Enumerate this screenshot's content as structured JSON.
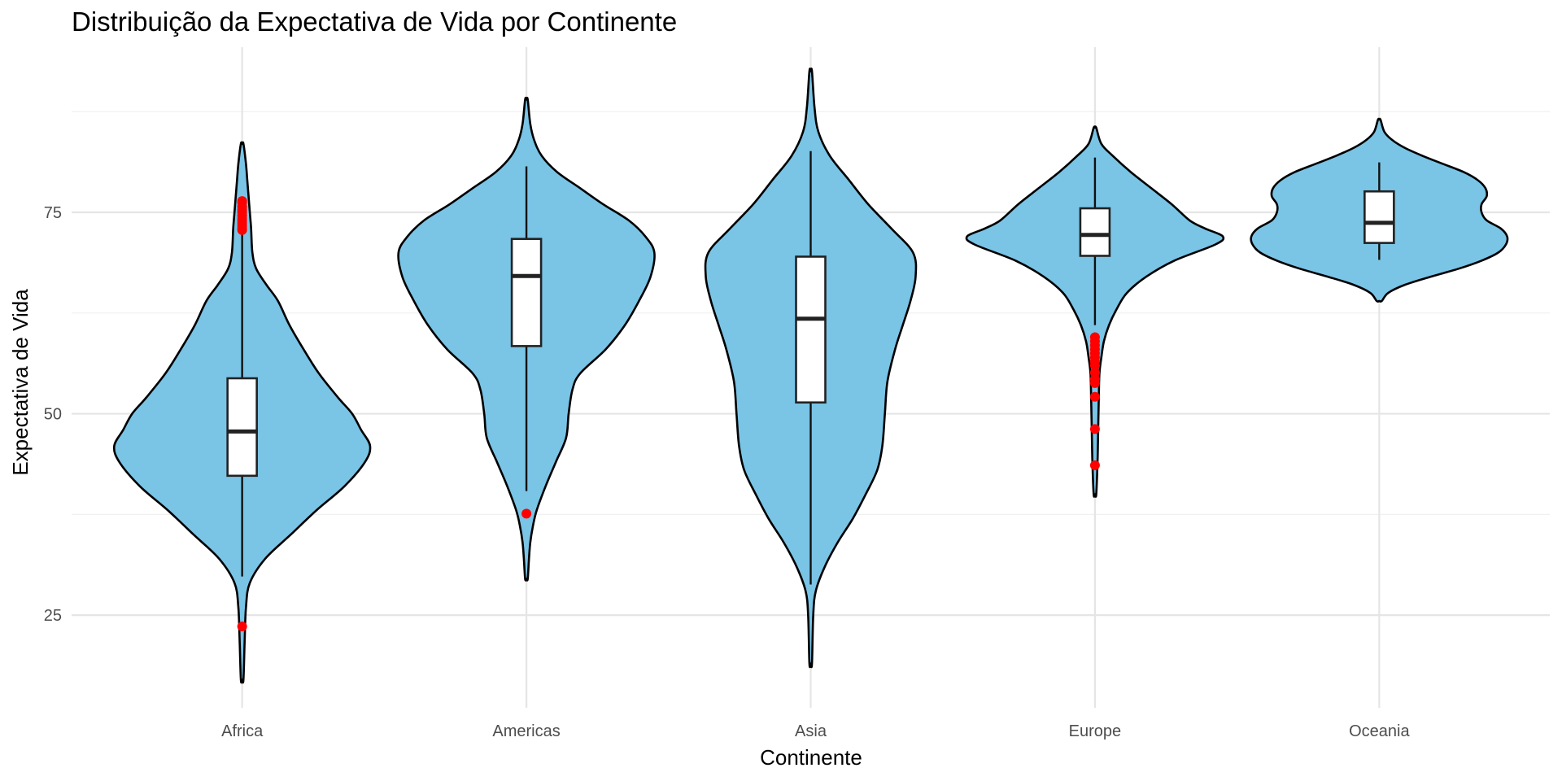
{
  "chart_data": {
    "type": "violin",
    "title": "Distribuição da Expectativa de Vida por Continente",
    "xlabel": "Continente",
    "ylabel": "Expectativa de Vida",
    "ylim": [
      13.5,
      95.5
    ],
    "yticks": [
      25,
      50,
      75
    ],
    "grid": true,
    "legend": "none",
    "colors": {
      "violin_fill": "#7AC4E6",
      "outlier": "#FF0000",
      "box_fill": "#FFFFFF",
      "gridline": "#E5E5E5"
    },
    "categories": [
      "Africa",
      "Americas",
      "Asia",
      "Europe",
      "Oceania"
    ],
    "violins": [
      {
        "category": "Africa",
        "range": [
          17,
          83.5
        ],
        "density": [
          [
            17,
            0.01
          ],
          [
            22,
            0.02
          ],
          [
            26,
            0.03
          ],
          [
            29,
            0.06
          ],
          [
            32,
            0.18
          ],
          [
            35,
            0.38
          ],
          [
            38,
            0.58
          ],
          [
            41,
            0.8
          ],
          [
            44,
            0.96
          ],
          [
            46,
            1
          ],
          [
            48,
            0.93
          ],
          [
            50,
            0.86
          ],
          [
            52,
            0.75
          ],
          [
            55,
            0.6
          ],
          [
            58,
            0.48
          ],
          [
            61,
            0.37
          ],
          [
            64,
            0.28
          ],
          [
            66,
            0.19
          ],
          [
            68,
            0.11
          ],
          [
            70,
            0.08
          ],
          [
            73,
            0.07
          ],
          [
            75,
            0.06
          ],
          [
            77,
            0.05
          ],
          [
            79,
            0.04
          ],
          [
            81,
            0.03
          ],
          [
            83.5,
            0.01
          ]
        ],
        "box": {
          "q1": 42.3,
          "median": 47.8,
          "q3": 54.4,
          "whisker_low": 29.8,
          "whisker_high": 72.9
        },
        "outliers": [
          23.6,
          72.8,
          73.0,
          73.3,
          73.6,
          73.9,
          74.2,
          74.6,
          75.0,
          75.3,
          75.7,
          76.2,
          76.4
        ]
      },
      {
        "category": "Americas",
        "range": [
          29.5,
          89
        ],
        "density": [
          [
            29.5,
            0.01
          ],
          [
            32,
            0.02
          ],
          [
            34,
            0.03
          ],
          [
            36,
            0.05
          ],
          [
            38,
            0.08
          ],
          [
            41,
            0.15
          ],
          [
            44,
            0.23
          ],
          [
            47,
            0.31
          ],
          [
            50,
            0.33
          ],
          [
            53,
            0.36
          ],
          [
            55,
            0.42
          ],
          [
            58,
            0.62
          ],
          [
            61,
            0.77
          ],
          [
            64,
            0.88
          ],
          [
            67,
            0.97
          ],
          [
            70,
            1
          ],
          [
            72,
            0.93
          ],
          [
            74,
            0.8
          ],
          [
            76,
            0.6
          ],
          [
            78,
            0.42
          ],
          [
            80,
            0.24
          ],
          [
            82,
            0.12
          ],
          [
            84,
            0.06
          ],
          [
            86,
            0.03
          ],
          [
            89,
            0.01
          ]
        ],
        "box": {
          "q1": 58.4,
          "median": 67.1,
          "q3": 71.7,
          "whisker_low": 40.4,
          "whisker_high": 80.7
        },
        "outliers": [
          37.6
        ]
      },
      {
        "category": "Asia",
        "range": [
          19,
          92.5
        ],
        "density": [
          [
            19,
            0.01
          ],
          [
            25,
            0.02
          ],
          [
            28,
            0.04
          ],
          [
            31,
            0.11
          ],
          [
            34,
            0.21
          ],
          [
            37,
            0.33
          ],
          [
            40,
            0.43
          ],
          [
            43,
            0.52
          ],
          [
            46,
            0.56
          ],
          [
            50,
            0.58
          ],
          [
            54,
            0.6
          ],
          [
            58,
            0.66
          ],
          [
            61,
            0.72
          ],
          [
            64,
            0.78
          ],
          [
            67,
            0.82
          ],
          [
            70,
            0.8
          ],
          [
            73,
            0.63
          ],
          [
            76,
            0.45
          ],
          [
            79,
            0.3
          ],
          [
            82,
            0.15
          ],
          [
            85,
            0.06
          ],
          [
            88,
            0.03
          ],
          [
            92.5,
            0.01
          ]
        ],
        "box": {
          "q1": 51.4,
          "median": 61.8,
          "q3": 69.5,
          "whisker_low": 28.8,
          "whisker_high": 82.6
        },
        "outliers": []
      },
      {
        "category": "Europe",
        "range": [
          40,
          85.5
        ],
        "density": [
          [
            40,
            0.01
          ],
          [
            44,
            0.02
          ],
          [
            48,
            0.025
          ],
          [
            52,
            0.03
          ],
          [
            55,
            0.035
          ],
          [
            57,
            0.05
          ],
          [
            59,
            0.07
          ],
          [
            61,
            0.11
          ],
          [
            63,
            0.17
          ],
          [
            65,
            0.25
          ],
          [
            67,
            0.4
          ],
          [
            69,
            0.62
          ],
          [
            71,
            0.94
          ],
          [
            72,
            1
          ],
          [
            73,
            0.86
          ],
          [
            74,
            0.74
          ],
          [
            76,
            0.6
          ],
          [
            78,
            0.44
          ],
          [
            80,
            0.28
          ],
          [
            82,
            0.14
          ],
          [
            83.5,
            0.05
          ],
          [
            85.5,
            0.01
          ]
        ],
        "box": {
          "q1": 69.6,
          "median": 72.2,
          "q3": 75.5,
          "whisker_low": 61.0,
          "whisker_high": 81.8
        },
        "outliers": [
          43.6,
          48.1,
          52.1,
          53.8,
          54.3,
          55.1,
          56.0,
          56.5,
          57.0,
          57.5,
          58.0,
          58.5,
          59.0,
          59.5
        ]
      },
      {
        "category": "Oceania",
        "range": [
          64,
          86.5
        ],
        "density": [
          [
            64,
            0.02
          ],
          [
            65,
            0.07
          ],
          [
            66,
            0.2
          ],
          [
            67,
            0.4
          ],
          [
            68,
            0.62
          ],
          [
            69,
            0.8
          ],
          [
            70,
            0.93
          ],
          [
            71,
            0.99
          ],
          [
            72,
            1
          ],
          [
            73,
            0.95
          ],
          [
            74,
            0.84
          ],
          [
            75,
            0.8
          ],
          [
            76,
            0.8
          ],
          [
            77,
            0.84
          ],
          [
            78,
            0.83
          ],
          [
            79,
            0.77
          ],
          [
            80,
            0.66
          ],
          [
            81,
            0.5
          ],
          [
            82,
            0.34
          ],
          [
            83,
            0.2
          ],
          [
            84,
            0.1
          ],
          [
            85,
            0.04
          ],
          [
            86.5,
            0.01
          ]
        ],
        "box": {
          "q1": 71.2,
          "median": 73.7,
          "q3": 77.6,
          "whisker_low": 69.1,
          "whisker_high": 81.2
        },
        "outliers": []
      }
    ]
  }
}
